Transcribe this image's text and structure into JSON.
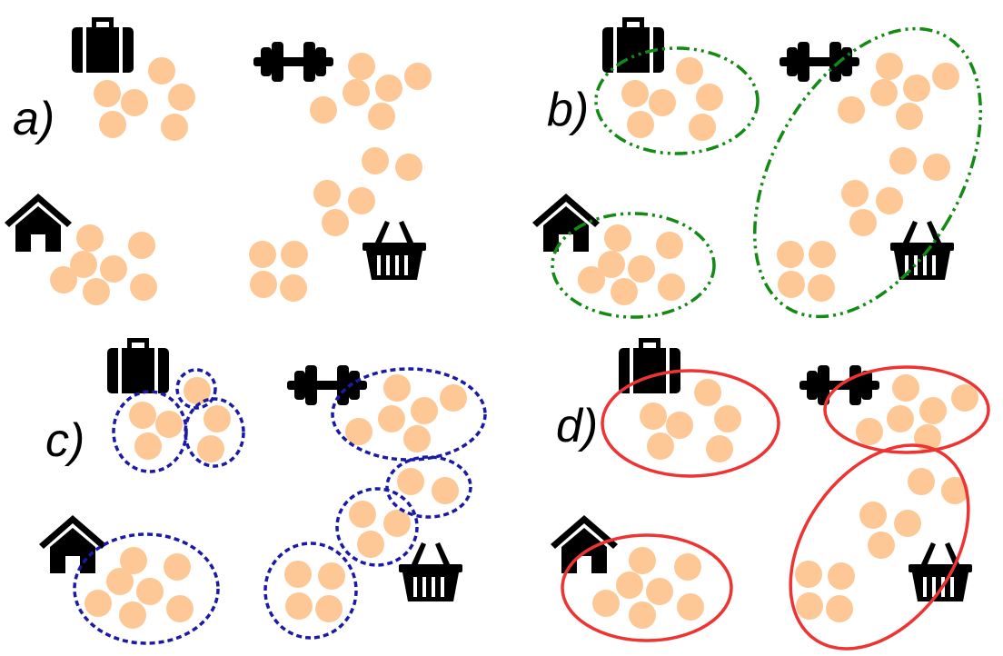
{
  "panels": [
    {
      "id": "a",
      "label": "a)"
    },
    {
      "id": "b",
      "label": "b)"
    },
    {
      "id": "c",
      "label": "c)"
    },
    {
      "id": "d",
      "label": "d)"
    }
  ],
  "icons": [
    "briefcase-icon",
    "dumbbell-icon",
    "house-icon",
    "basket-icon"
  ],
  "colors": {
    "dot": "#fdc896",
    "icon": "#000000",
    "cluster_b": "#138a13",
    "cluster_c": "#1a1aa6",
    "cluster_d": "#ee3333"
  }
}
